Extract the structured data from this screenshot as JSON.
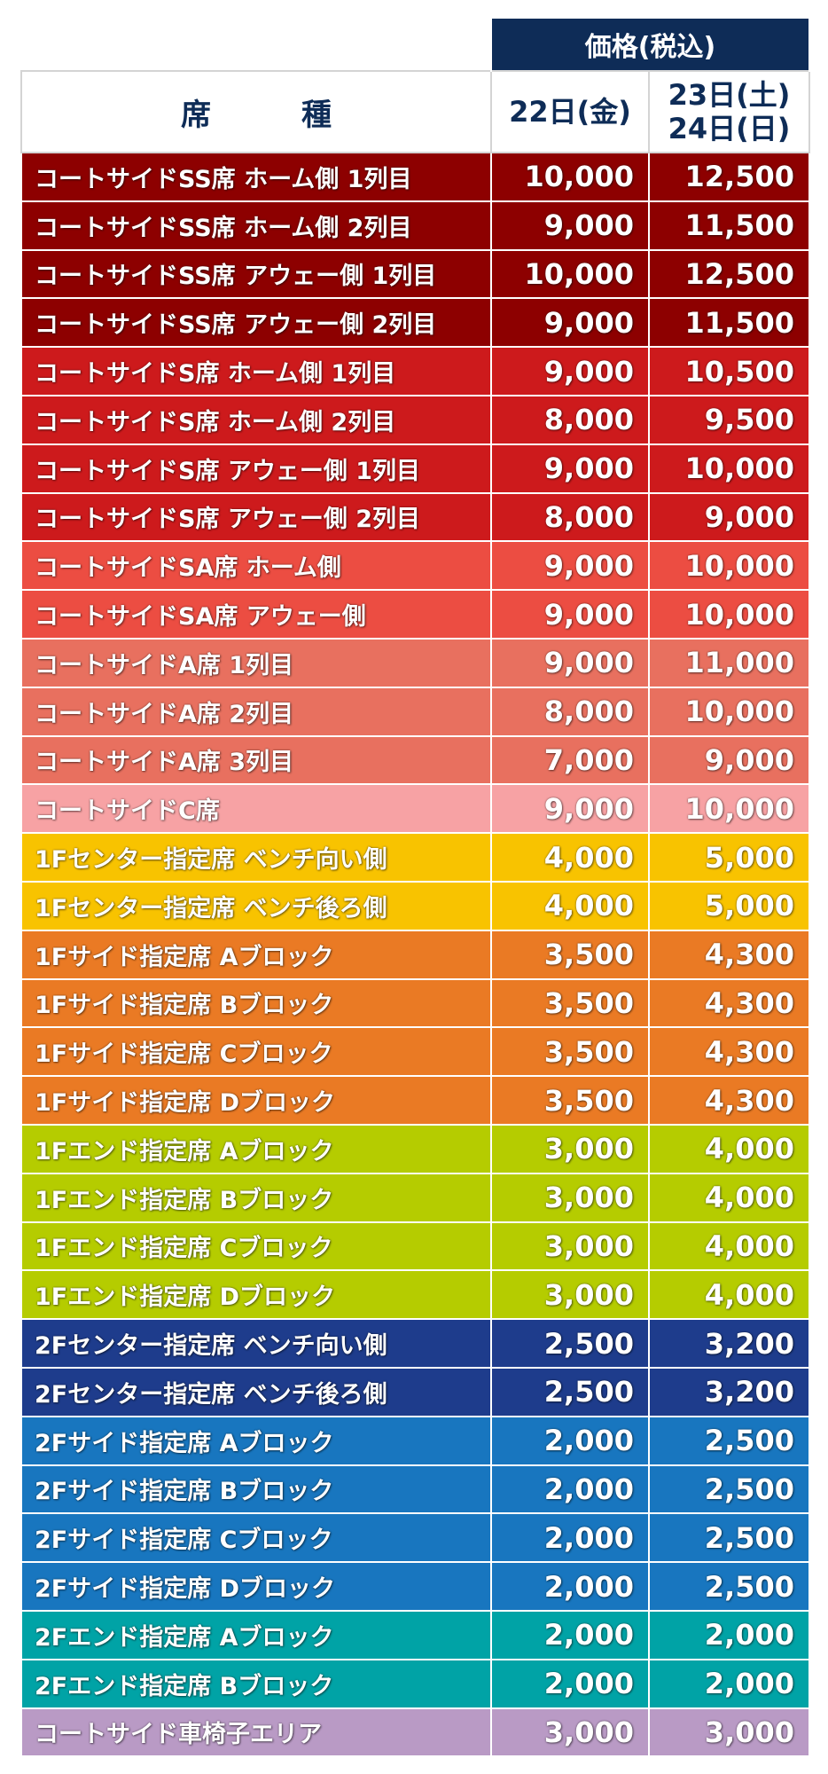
{
  "header": {
    "price_group": "価格(税込)",
    "seat_type": "席　種",
    "day1": "22日(金)",
    "day2_line1": "23日(土)",
    "day2_line2": "24日(日)"
  },
  "rows": [
    {
      "seat": "コートサイドSS席 ホーム側 1列目",
      "p1": "10,000",
      "p2": "12,500",
      "color": "#8d0000"
    },
    {
      "seat": "コートサイドSS席 ホーム側 2列目",
      "p1": "9,000",
      "p2": "11,500",
      "color": "#8d0000"
    },
    {
      "seat": "コートサイドSS席 アウェー側 1列目",
      "p1": "10,000",
      "p2": "12,500",
      "color": "#8d0000"
    },
    {
      "seat": "コートサイドSS席 アウェー側 2列目",
      "p1": "9,000",
      "p2": "11,500",
      "color": "#8d0000"
    },
    {
      "seat": "コートサイドS席 ホーム側 1列目",
      "p1": "9,000",
      "p2": "10,500",
      "color": "#cd1a1c"
    },
    {
      "seat": "コートサイドS席 ホーム側 2列目",
      "p1": "8,000",
      "p2": "9,500",
      "color": "#cd1a1c"
    },
    {
      "seat": "コートサイドS席 アウェー側 1列目",
      "p1": "9,000",
      "p2": "10,000",
      "color": "#cd1a1c"
    },
    {
      "seat": "コートサイドS席 アウェー側 2列目",
      "p1": "8,000",
      "p2": "9,000",
      "color": "#cd1a1c"
    },
    {
      "seat": "コートサイドSA席 ホーム側",
      "p1": "9,000",
      "p2": "10,000",
      "color": "#ec4d42"
    },
    {
      "seat": "コートサイドSA席 アウェー側",
      "p1": "9,000",
      "p2": "10,000",
      "color": "#ec4d42"
    },
    {
      "seat": "コートサイドA席 1列目",
      "p1": "9,000",
      "p2": "11,000",
      "color": "#e8705f"
    },
    {
      "seat": "コートサイドA席 2列目",
      "p1": "8,000",
      "p2": "10,000",
      "color": "#e8705f"
    },
    {
      "seat": "コートサイドA席 3列目",
      "p1": "7,000",
      "p2": "9,000",
      "color": "#e8705f"
    },
    {
      "seat": "コートサイドC席",
      "p1": "9,000",
      "p2": "10,000",
      "color": "#f7a2a4"
    },
    {
      "seat": "1Fセンター指定席 ベンチ向い側",
      "p1": "4,000",
      "p2": "5,000",
      "color": "#f8c300"
    },
    {
      "seat": "1Fセンター指定席 ベンチ後ろ側",
      "p1": "4,000",
      "p2": "5,000",
      "color": "#f8c300"
    },
    {
      "seat": "1Fサイド指定席 Aブロック",
      "p1": "3,500",
      "p2": "4,300",
      "color": "#ea7a24"
    },
    {
      "seat": "1Fサイド指定席 Bブロック",
      "p1": "3,500",
      "p2": "4,300",
      "color": "#ea7a24"
    },
    {
      "seat": "1Fサイド指定席 Cブロック",
      "p1": "3,500",
      "p2": "4,300",
      "color": "#ea7a24"
    },
    {
      "seat": "1Fサイド指定席 Dブロック",
      "p1": "3,500",
      "p2": "4,300",
      "color": "#ea7a24"
    },
    {
      "seat": "1Fエンド指定席 Aブロック",
      "p1": "3,000",
      "p2": "4,000",
      "color": "#b5cc00"
    },
    {
      "seat": "1Fエンド指定席 Bブロック",
      "p1": "3,000",
      "p2": "4,000",
      "color": "#b5cc00"
    },
    {
      "seat": "1Fエンド指定席 Cブロック",
      "p1": "3,000",
      "p2": "4,000",
      "color": "#b5cc00"
    },
    {
      "seat": "1Fエンド指定席 Dブロック",
      "p1": "3,000",
      "p2": "4,000",
      "color": "#b5cc00"
    },
    {
      "seat": "2Fセンター指定席 ベンチ向い側",
      "p1": "2,500",
      "p2": "3,200",
      "color": "#1e3c8c"
    },
    {
      "seat": "2Fセンター指定席 ベンチ後ろ側",
      "p1": "2,500",
      "p2": "3,200",
      "color": "#1e3c8c"
    },
    {
      "seat": "2Fサイド指定席 Aブロック",
      "p1": "2,000",
      "p2": "2,500",
      "color": "#1876bf"
    },
    {
      "seat": "2Fサイド指定席 Bブロック",
      "p1": "2,000",
      "p2": "2,500",
      "color": "#1876bf"
    },
    {
      "seat": "2Fサイド指定席 Cブロック",
      "p1": "2,000",
      "p2": "2,500",
      "color": "#1876bf"
    },
    {
      "seat": "2Fサイド指定席 Dブロック",
      "p1": "2,000",
      "p2": "2,500",
      "color": "#1876bf"
    },
    {
      "seat": "2Fエンド指定席 Aブロック",
      "p1": "2,000",
      "p2": "2,000",
      "color": "#00a3a6"
    },
    {
      "seat": "2Fエンド指定席 Bブロック",
      "p1": "2,000",
      "p2": "2,000",
      "color": "#00a3a6"
    },
    {
      "seat": "コートサイド車椅子エリア",
      "p1": "3,000",
      "p2": "3,000",
      "color": "#b99ac5"
    }
  ]
}
